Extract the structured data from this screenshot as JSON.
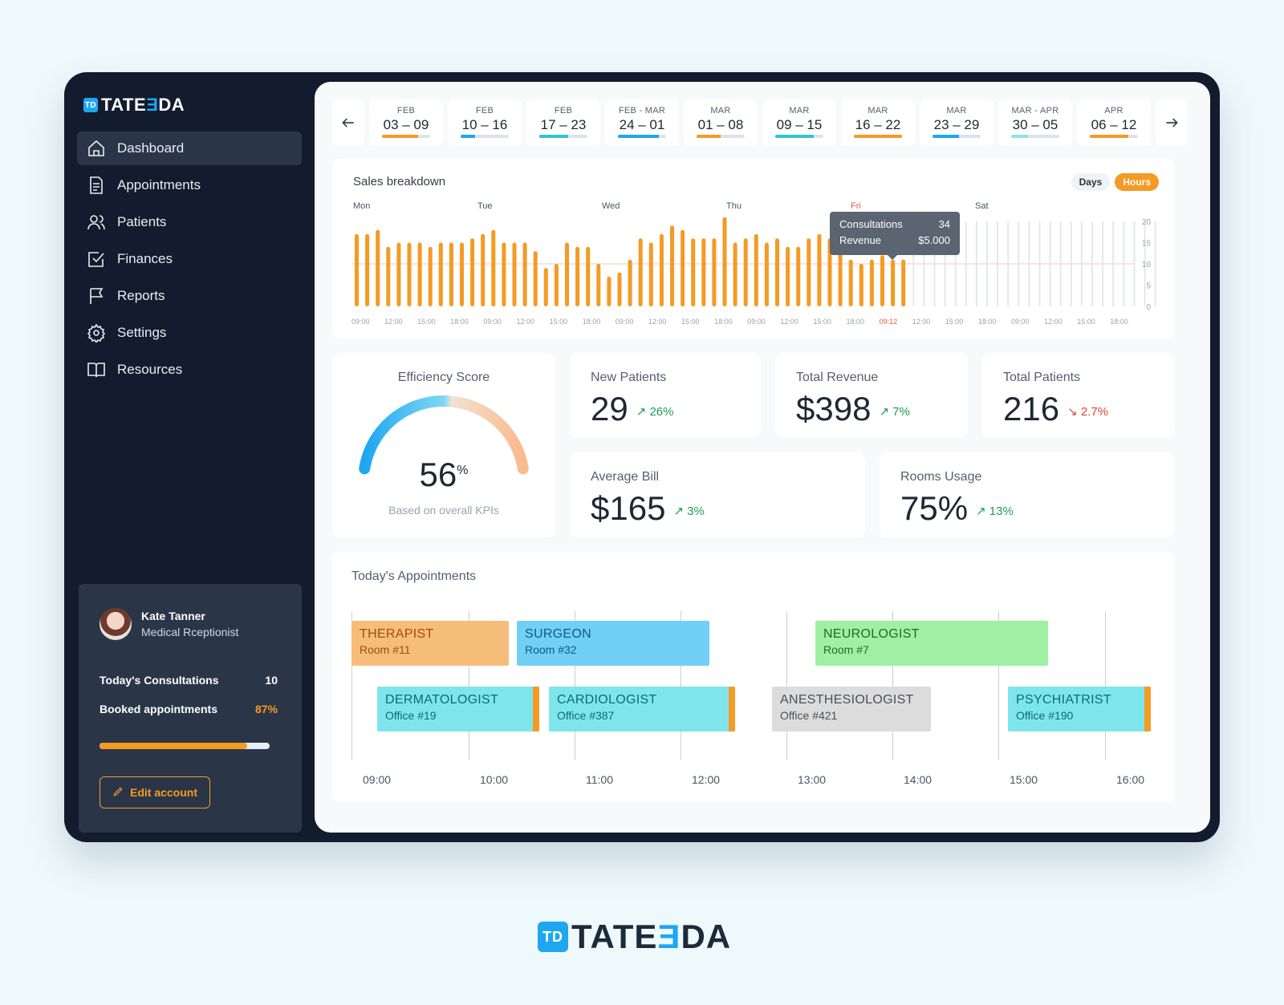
{
  "brand": {
    "name_left": "TATE",
    "name_mid": "Ǝ",
    "name_right": "DA",
    "mark": "TD"
  },
  "sidebar": {
    "items": [
      {
        "label": "Dashboard",
        "icon": "home-icon",
        "active": true
      },
      {
        "label": "Appointments",
        "icon": "document-icon",
        "active": false
      },
      {
        "label": "Patients",
        "icon": "users-icon",
        "active": false
      },
      {
        "label": "Finances",
        "icon": "checkbox-icon",
        "active": false
      },
      {
        "label": "Reports",
        "icon": "flag-icon",
        "active": false
      },
      {
        "label": "Settings",
        "icon": "gear-icon",
        "active": false
      },
      {
        "label": "Resources",
        "icon": "book-icon",
        "active": false
      }
    ]
  },
  "profile": {
    "name": "Kate Tanner",
    "role": "Medical Rceptionist",
    "consultations_label": "Today's Consultations",
    "consultations_value": "10",
    "booked_label": "Booked appointments",
    "booked_value": "87%",
    "booked_fraction": 0.87,
    "edit_label": "Edit account"
  },
  "weeks": [
    {
      "month": "FEB",
      "days": "03 – 09",
      "progress": 0.75,
      "color": "#f59a23"
    },
    {
      "month": "FEB",
      "days": "10 – 16",
      "progress": 0.3,
      "color": "#1ea7f0"
    },
    {
      "month": "FEB",
      "days": "17 – 23",
      "progress": 0.6,
      "color": "#2ec4d6"
    },
    {
      "month": "FEB - MAR",
      "days": "24 – 01",
      "progress": 0.85,
      "color": "#1ea7f0"
    },
    {
      "month": "MAR",
      "days": "01 – 08",
      "progress": 0.5,
      "color": "#f59a23"
    },
    {
      "month": "MAR",
      "days": "09 – 15",
      "progress": 0.8,
      "color": "#2ec4d6"
    },
    {
      "month": "MAR",
      "days": "16 – 22",
      "progress": 1.0,
      "color": "#f59a23"
    },
    {
      "month": "MAR",
      "days": "23 – 29",
      "progress": 0.55,
      "color": "#1ea7f0"
    },
    {
      "month": "MAR - APR",
      "days": "30 – 05",
      "progress": 0.35,
      "color": "#8fe3ea"
    },
    {
      "month": "APR",
      "days": "06 – 12",
      "progress": 0.8,
      "color": "#f59a23"
    }
  ],
  "sales": {
    "title": "Sales breakdown",
    "toggle_days": "Days",
    "toggle_hours": "Hours",
    "tooltip": {
      "label1": "Consultations",
      "value1": "34",
      "label2": "Revenue",
      "value2": "$5.000"
    }
  },
  "chart_data": {
    "type": "bar",
    "day_labels": [
      "Mon",
      "Tue",
      "Wed",
      "Thu",
      "Fri",
      "Sat"
    ],
    "highlight_day": "Fri",
    "x_ticks": [
      "09:00",
      "12:00",
      "15:00",
      "18:00",
      "09:00",
      "12:00",
      "15:00",
      "18:00",
      "09:00",
      "12:00",
      "15:00",
      "18:00",
      "09:00",
      "12:00",
      "15:00",
      "18:00",
      "09:12",
      "12:00",
      "15:00",
      "18:00",
      "09:00",
      "12:00",
      "15:00",
      "18:00"
    ],
    "highlight_tick": "09:12",
    "y_ticks": [
      "20",
      "15",
      "10",
      "5",
      "0"
    ],
    "ylim": [
      0,
      20
    ],
    "reference_line": 10,
    "values": [
      17,
      17,
      18,
      14,
      15,
      15,
      15,
      14,
      15,
      15,
      15,
      16,
      17,
      18,
      15,
      15,
      15,
      13,
      9,
      10,
      15,
      14,
      14,
      10,
      7,
      8,
      11,
      16,
      15,
      17,
      19,
      18,
      16,
      16,
      16,
      21,
      15,
      16,
      17,
      15,
      16,
      14,
      14,
      16,
      17,
      16,
      15,
      11,
      10,
      11,
      12,
      11,
      11
    ],
    "empty_slots": 24,
    "bar_color": "#f59a23",
    "empty_color": "#e4e7eb"
  },
  "efficiency": {
    "title": "Efficiency Score",
    "value": "56",
    "unit": "%",
    "fraction": 0.56,
    "caption": "Based on overall KPIs"
  },
  "kpis": {
    "new_patients": {
      "label": "New Patients",
      "value": "29",
      "delta": "↗ 26%"
    },
    "total_revenue": {
      "label": "Total Revenue",
      "value": "$398",
      "delta": "↗ 7%"
    },
    "total_patients": {
      "label": "Total Patients",
      "value": "216",
      "delta": "↘ 2.7%"
    },
    "average_bill": {
      "label": "Average Bill",
      "value": "$165",
      "delta": "↗ 3%"
    },
    "rooms_usage": {
      "label": "Rooms Usage",
      "value": "75%",
      "delta": "↗ 13%"
    }
  },
  "appointments": {
    "title": "Today's Appointments",
    "times": [
      "09:00",
      "10:00",
      "11:00",
      "12:00",
      "13:00",
      "14:00",
      "15:00",
      "16:00"
    ],
    "items": [
      {
        "title": "THERAPIST",
        "room": "Room #11",
        "bg": "#f6bd7a",
        "fg": "#9a4f08"
      },
      {
        "title": "SURGEON",
        "room": "Room #32",
        "bg": "#72cff6",
        "fg": "#0b5c86"
      },
      {
        "title": "NEUROLOGIST",
        "room": "Room #7",
        "bg": "#9ff0a2",
        "fg": "#1b6e2a"
      },
      {
        "title": "DERMATOLOGIST",
        "room": "Office #19",
        "bg": "#7fe5ec",
        "fg": "#0d6b78"
      },
      {
        "title": "CARDIOLOGIST",
        "room": "Office #387",
        "bg": "#7fe5ec",
        "fg": "#0d6b78"
      },
      {
        "title": "ANESTHESIOLOGIST",
        "room": "Office #421",
        "bg": "#dcdcdc",
        "fg": "#4a4f55"
      },
      {
        "title": "PSYCHIATRIST",
        "room": "Office #190",
        "bg": "#7fe5ec",
        "fg": "#0d6b78"
      }
    ]
  }
}
